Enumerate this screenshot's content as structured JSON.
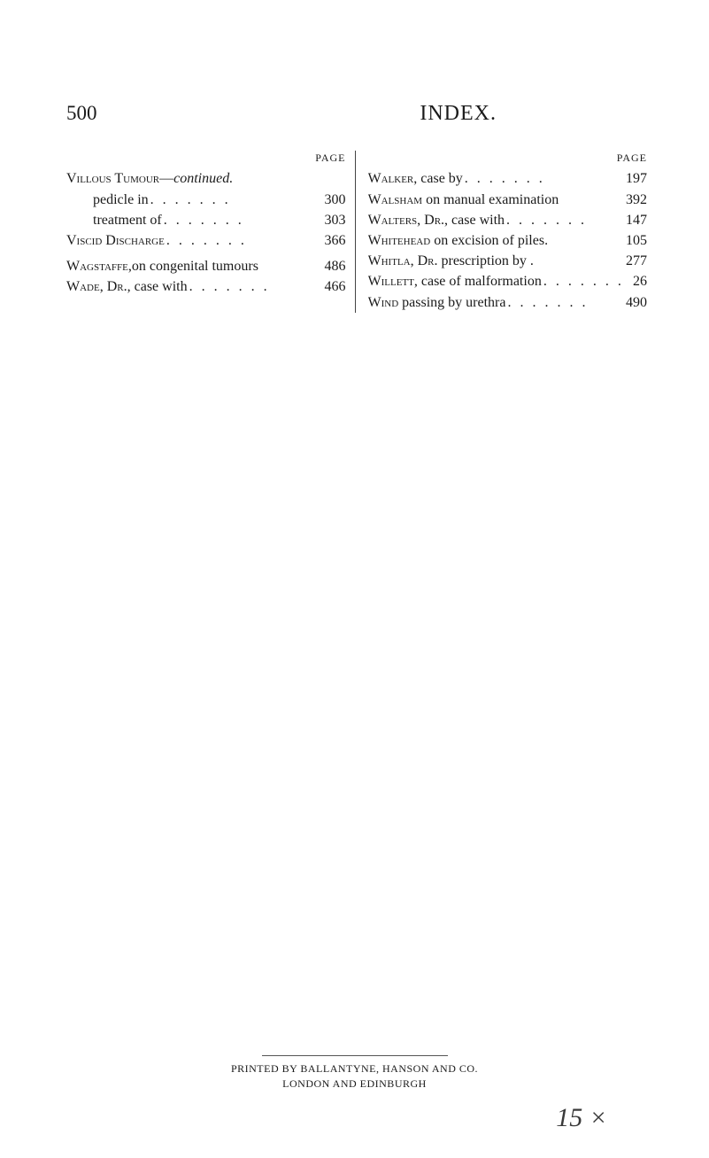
{
  "header": {
    "page_number": "500",
    "title": "INDEX."
  },
  "left_column": {
    "page_label": "PAGE",
    "entries": [
      {
        "text": "Villous Tumour—",
        "italic_suffix": "continued.",
        "num": "",
        "sub": false,
        "nodots": true
      },
      {
        "text": "pedicle in",
        "num": "300",
        "sub": true
      },
      {
        "text": "treatment of",
        "num": "303",
        "sub": true
      },
      {
        "text": "Viscid Discharge",
        "num": "366",
        "sub": false
      },
      {
        "spacer": true
      },
      {
        "text": "Wagstaffe,on congenital tumours",
        "num": "486",
        "sub": false,
        "tight": true
      },
      {
        "text": "Wade, Dr., case with",
        "num": "466",
        "sub": false
      }
    ]
  },
  "right_column": {
    "page_label": "PAGE",
    "entries": [
      {
        "text": "Walker, case by",
        "num": "197",
        "sub": false
      },
      {
        "text": "Walsham on manual examination",
        "num": "392",
        "sub": false,
        "tight": true
      },
      {
        "text": "Walters, Dr., case with",
        "num": "147",
        "sub": false
      },
      {
        "text": "Whitehead on excision of piles.",
        "num": "105",
        "sub": false,
        "tight": true
      },
      {
        "text": "Whitla, Dr. prescription by .",
        "num": "277",
        "sub": false,
        "tight": true
      },
      {
        "text": "Willett, case of malformation",
        "num": "26",
        "sub": false
      },
      {
        "text": "Wind passing by urethra",
        "num": "490",
        "sub": false
      }
    ]
  },
  "footer": {
    "line1": "PRINTED BY BALLANTYNE, HANSON AND CO.",
    "line2": "LONDON AND EDINBURGH"
  },
  "handwritten": "15 ×"
}
